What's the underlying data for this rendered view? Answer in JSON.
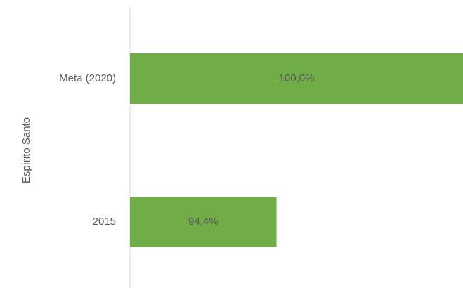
{
  "chart_data": {
    "type": "hbar",
    "axis_label": "Espírito Santo",
    "categories": [
      "Meta (2020)",
      "2015"
    ],
    "values": [
      100.0,
      94.4
    ],
    "value_labels": [
      "100,0%",
      "94,4%"
    ],
    "color": "#70ad47",
    "xlim": [
      90,
      100
    ]
  }
}
